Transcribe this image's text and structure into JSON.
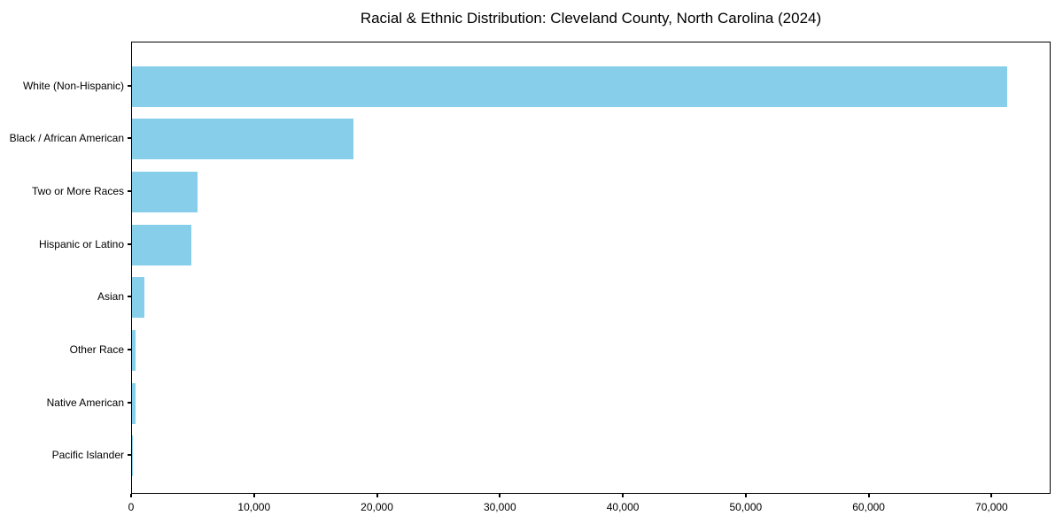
{
  "chart_data": {
    "type": "bar",
    "orientation": "horizontal",
    "title": "Racial & Ethnic Distribution: Cleveland County, North Carolina (2024)",
    "categories": [
      "White (Non-Hispanic)",
      "Black / African American",
      "Two or More Races",
      "Hispanic or Latino",
      "Asian",
      "Other Race",
      "Native American",
      "Pacific Islander"
    ],
    "values": [
      71200,
      18000,
      5300,
      4800,
      1000,
      300,
      280,
      50
    ],
    "xlabel": "",
    "ylabel": "",
    "xlim": [
      0,
      74800
    ],
    "xticks": [
      0,
      10000,
      20000,
      30000,
      40000,
      50000,
      60000,
      70000
    ],
    "xtick_labels": [
      "0",
      "10,000",
      "20,000",
      "30,000",
      "40,000",
      "50,000",
      "60,000",
      "70,000"
    ],
    "bar_color": "#87CEEB",
    "background_color": "#ffffff",
    "axis_color": "#000000",
    "grid": false,
    "legend_position": "none"
  }
}
